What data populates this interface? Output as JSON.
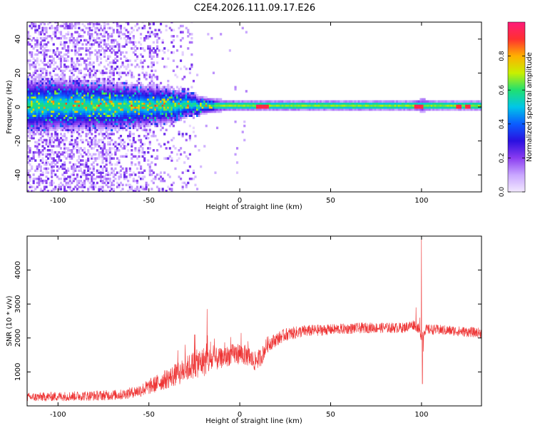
{
  "title": "C2E4.2026.111.09.17.E26",
  "colors": {
    "snr_line": "#ee3333",
    "axis": "#000000",
    "colormap": [
      "#f2e8ff",
      "#c9a6ff",
      "#8a3cf0",
      "#2a10e0",
      "#0a5cff",
      "#00c6e8",
      "#20e070",
      "#c8f000",
      "#ffb000",
      "#ff3030",
      "#ff1a7a"
    ]
  },
  "chart_data": [
    {
      "type": "heatmap",
      "name": "spectrogram",
      "xlabel": "Height of straight line (km)",
      "ylabel": "Frequency (Hz)",
      "xlim": [
        -117,
        133
      ],
      "ylim": [
        -50,
        50
      ],
      "xticks": [
        -100,
        -50,
        0,
        50,
        100
      ],
      "yticks": [
        -40,
        -20,
        0,
        20,
        40
      ],
      "xtick_labels": [
        "-100",
        "-50",
        "0",
        "50",
        "100"
      ],
      "ytick_labels": [
        "-40",
        "-20",
        "0",
        "20",
        "40"
      ],
      "band": {
        "center_hz": 1,
        "halfwidth_hz": [
          [
            -117,
            16
          ],
          [
            -70,
            14
          ],
          [
            -50,
            12
          ],
          [
            -40,
            11
          ],
          [
            -30,
            8
          ],
          [
            -20,
            5
          ],
          [
            -10,
            3.5
          ],
          [
            0,
            3
          ],
          [
            50,
            2.8
          ],
          [
            95,
            2.8
          ],
          [
            100,
            4
          ],
          [
            105,
            2.6
          ],
          [
            133,
            2.4
          ]
        ]
      },
      "scatter_noise_until_km": -25,
      "hotspots_km": [
        10,
        12,
        14,
        97,
        99,
        120,
        125
      ],
      "colorbar": {
        "label": "Normalized spectral amplitude",
        "range": [
          0,
          1
        ],
        "ticks": [
          0.0,
          0.2,
          0.4,
          0.6,
          0.8
        ],
        "tick_labels": [
          "0.0",
          "0.2",
          "0.4",
          "0.6",
          "0.8"
        ]
      }
    },
    {
      "type": "line",
      "name": "snr",
      "xlabel": "Height of straight line (km)",
      "ylabel": "SNR (10 * v/v)",
      "xlim": [
        -117,
        133
      ],
      "ylim": [
        0,
        5000
      ],
      "xticks": [
        -100,
        -50,
        0,
        50,
        100
      ],
      "yticks": [
        1000,
        2000,
        3000,
        4000
      ],
      "xtick_labels": [
        "-100",
        "-50",
        "0",
        "50",
        "100"
      ],
      "ytick_labels": [
        "1000",
        "2000",
        "3000",
        "4000"
      ],
      "series": [
        {
          "name": "SNR",
          "trend": [
            [
              -117,
              250
            ],
            [
              -100,
              280
            ],
            [
              -80,
              300
            ],
            [
              -65,
              330
            ],
            [
              -55,
              450
            ],
            [
              -48,
              600
            ],
            [
              -40,
              800
            ],
            [
              -32,
              1000
            ],
            [
              -26,
              1200
            ],
            [
              -20,
              1300
            ],
            [
              -15,
              1350
            ],
            [
              -10,
              1400
            ],
            [
              -5,
              1500
            ],
            [
              0,
              1550
            ],
            [
              5,
              1450
            ],
            [
              8,
              1300
            ],
            [
              12,
              1450
            ],
            [
              15,
              1800
            ],
            [
              20,
              1950
            ],
            [
              25,
              2100
            ],
            [
              35,
              2200
            ],
            [
              50,
              2250
            ],
            [
              70,
              2300
            ],
            [
              90,
              2300
            ],
            [
              96,
              2400
            ],
            [
              98,
              2300
            ],
            [
              100,
              2050
            ],
            [
              102,
              2250
            ],
            [
              106,
              2250
            ],
            [
              120,
              2200
            ],
            [
              133,
              2150
            ]
          ],
          "noise": [
            [
              -117,
              130
            ],
            [
              -60,
              160
            ],
            [
              -40,
              300
            ],
            [
              -20,
              450
            ],
            [
              -10,
              300
            ],
            [
              0,
              320
            ],
            [
              10,
              280
            ],
            [
              20,
              200
            ],
            [
              50,
              160
            ],
            [
              133,
              150
            ]
          ],
          "spikes": [
            [
              -18,
              2850
            ],
            [
              -15,
              1200
            ],
            [
              -25,
              2100
            ],
            [
              -30,
              1800
            ],
            [
              97,
              2900
            ],
            [
              99,
              2600
            ],
            [
              100,
              4900
            ],
            [
              100.5,
              650
            ],
            [
              101,
              1600
            ]
          ]
        }
      ]
    }
  ]
}
